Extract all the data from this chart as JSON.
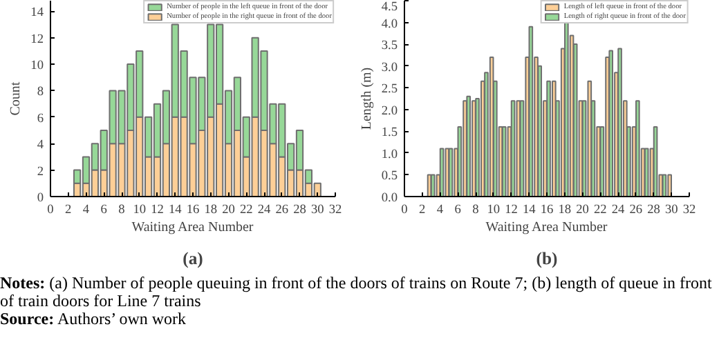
{
  "chart_data": [
    {
      "type": "bar",
      "stacked": true,
      "xlabel": "Waiting Area Number",
      "ylabel": "Count",
      "legend": "top right",
      "xlim": [
        0,
        32
      ],
      "xticks": [
        0,
        2,
        4,
        6,
        8,
        10,
        12,
        14,
        16,
        18,
        20,
        22,
        24,
        26,
        28,
        30,
        32
      ],
      "ylim": [
        0,
        14.8
      ],
      "yticks": [
        0,
        2,
        4,
        6,
        8,
        10,
        12,
        14
      ],
      "x": [
        3,
        4,
        5,
        6,
        7,
        8,
        9,
        10,
        11,
        12,
        13,
        14,
        15,
        16,
        17,
        18,
        19,
        20,
        21,
        22,
        23,
        24,
        25,
        26,
        27,
        28,
        29,
        30
      ],
      "series": [
        {
          "name": "Number of people in the right queue in front of the door",
          "color": "#fdcf97",
          "values": [
            1,
            1,
            2,
            2,
            4,
            4,
            5,
            6,
            3,
            3,
            4,
            6,
            6,
            4,
            5,
            6,
            7,
            4,
            5,
            3,
            6,
            5,
            4,
            3,
            2,
            2,
            1,
            1
          ]
        },
        {
          "name": "Number of people in the left queue in front of the door",
          "color": "#97d898",
          "values": [
            1,
            2,
            2,
            3,
            4,
            4,
            5,
            5,
            3,
            4,
            4,
            7,
            5,
            5,
            4,
            7,
            6,
            4,
            4,
            3,
            6,
            6,
            3,
            4,
            2,
            3,
            1,
            null
          ]
        }
      ],
      "annotations": [
        "(a)",
        "Notes: (a) Number of people queuing in front of the doors of trains on Route 7; (b) length of queue in front of train doors for Line 7 trains",
        "Source: Authors’ own work"
      ]
    },
    {
      "type": "bar",
      "xlabel": "Waiting Area Number",
      "ylabel": "Length (m)",
      "legend": "top right",
      "xlim": [
        0,
        32
      ],
      "xticks": [
        0,
        2,
        4,
        6,
        8,
        10,
        12,
        14,
        16,
        18,
        20,
        22,
        24,
        26,
        28,
        30,
        32
      ],
      "ylim": [
        0,
        4.5
      ],
      "yticks": [
        {
          "value": 0,
          "label": "0.0"
        },
        {
          "value": 0.5,
          "label": "0.5"
        },
        {
          "value": 1,
          "label": "1.0"
        },
        {
          "value": 1.5,
          "label": "1.5"
        },
        {
          "value": 2,
          "label": "2.0"
        },
        {
          "value": 2.5,
          "label": "2.5"
        },
        {
          "value": 3,
          "label": "3.0"
        },
        {
          "value": 3.5,
          "label": "3.5"
        },
        {
          "value": 4,
          "label": "4.0"
        },
        {
          "value": 4.5,
          "label": "4.5"
        }
      ],
      "x": [
        3,
        4,
        5,
        6,
        7,
        8,
        9,
        10,
        11,
        12,
        13,
        14,
        15,
        16,
        17,
        18,
        19,
        20,
        21,
        22,
        23,
        24,
        25,
        26,
        27,
        28,
        29,
        30
      ],
      "series": [
        {
          "name": "Length of left queue in front of the door",
          "color": "#fdcf97",
          "values": [
            0.5,
            0.5,
            1.1,
            1.1,
            2.2,
            2.2,
            2.65,
            3.2,
            1.6,
            1.6,
            2.2,
            3.2,
            3.2,
            2.2,
            2.65,
            3.4,
            3.7,
            2.2,
            2.65,
            1.6,
            3.2,
            2.85,
            2.2,
            1.6,
            1.1,
            1.1,
            0.5,
            0.5
          ]
        },
        {
          "name": "Length of right queue in front of the door",
          "color": "#97d898",
          "values": [
            0.5,
            1.1,
            1.1,
            1.6,
            2.3,
            2.25,
            2.85,
            2.65,
            1.6,
            2.2,
            2.2,
            3.9,
            3.0,
            2.65,
            2.2,
            4.0,
            3.5,
            2.2,
            2.2,
            1.6,
            3.35,
            3.4,
            1.6,
            2.2,
            1.1,
            1.6,
            0.5,
            null
          ]
        }
      ],
      "annotations": [
        "(b)"
      ]
    }
  ]
}
